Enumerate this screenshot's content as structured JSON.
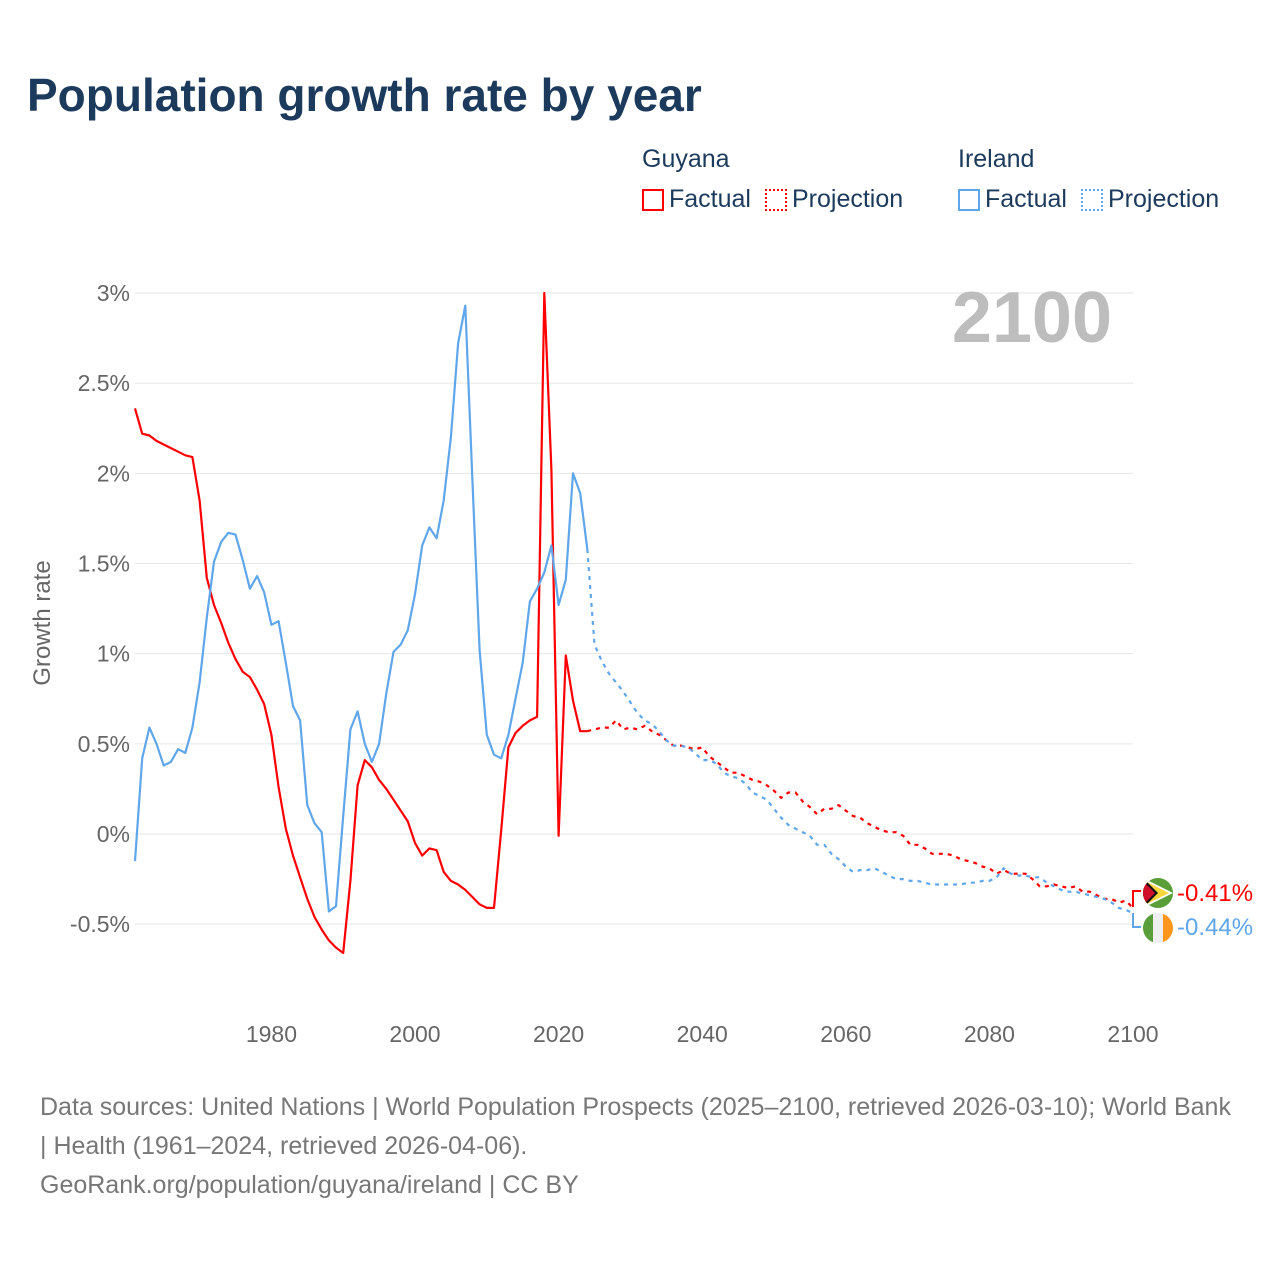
{
  "title": "Population growth rate by year",
  "legend": {
    "groups": [
      {
        "country": "Guyana",
        "factual": "Factual",
        "projection": "Projection",
        "color": "#ff0000"
      },
      {
        "country": "Ireland",
        "factual": "Factual",
        "projection": "Projection",
        "color": "#5fa6ea"
      }
    ]
  },
  "year_label": "2100",
  "end_labels": {
    "guyana": "-0.41%",
    "ireland": "-0.44%"
  },
  "footer": {
    "sources": "Data sources: United Nations | World Population Prospects (2025–2100, retrieved 2026-03-10); World Bank | Health (1961–2024, retrieved 2026-04-06).",
    "credit": "GeoRank.org/population/guyana/ireland | CC BY"
  },
  "chart_data": {
    "type": "line",
    "title": "Population growth rate by year",
    "xlabel": "",
    "ylabel": "Growth rate",
    "xlim": [
      1961,
      2100
    ],
    "ylim": [
      -0.8,
      3.0
    ],
    "x_ticks": [
      {
        "v": 1980,
        "label": "1980"
      },
      {
        "v": 2000,
        "label": "2000"
      },
      {
        "v": 2020,
        "label": "2020"
      },
      {
        "v": 2040,
        "label": "2040"
      },
      {
        "v": 2060,
        "label": "2060"
      },
      {
        "v": 2080,
        "label": "2080"
      },
      {
        "v": 2100,
        "label": "2100"
      }
    ],
    "y_ticks": [
      {
        "v": 3,
        "label": "3%"
      },
      {
        "v": 2.5,
        "label": "2.5%"
      },
      {
        "v": 2,
        "label": "2%"
      },
      {
        "v": 1.5,
        "label": "1.5%"
      },
      {
        "v": 1,
        "label": "1%"
      },
      {
        "v": 0.5,
        "label": "0.5%"
      },
      {
        "v": 0,
        "label": "0%"
      },
      {
        "v": -0.5,
        "label": "-0.5%"
      }
    ],
    "grid": true,
    "legend_position": "top-right",
    "series": [
      {
        "name": "Guyana Factual",
        "color": "#ff0000",
        "dashed": false,
        "x_start": 1961,
        "values": [
          2.36,
          2.22,
          2.21,
          2.18,
          2.16,
          2.14,
          2.12,
          2.1,
          2.09,
          1.85,
          1.42,
          1.27,
          1.17,
          1.06,
          0.97,
          0.9,
          0.87,
          0.8,
          0.72,
          0.55,
          0.26,
          0.03,
          -0.12,
          -0.24,
          -0.36,
          -0.46,
          -0.53,
          -0.59,
          -0.63,
          -0.66,
          -0.26,
          0.27,
          0.41,
          0.37,
          0.3,
          0.25,
          0.19,
          0.13,
          0.07,
          -0.05,
          -0.12,
          -0.08,
          -0.09,
          -0.21,
          -0.26,
          -0.28,
          -0.31,
          -0.35,
          -0.39,
          -0.41,
          -0.41,
          0.02,
          0.48,
          0.56,
          0.6,
          0.63,
          0.65,
          3.0,
          2.02,
          -0.01,
          0.99,
          0.74,
          0.57,
          0.57
        ]
      },
      {
        "name": "Guyana Projection",
        "color": "#ff0000",
        "dashed": true,
        "x_start": 2024,
        "values": [
          0.57,
          0.58,
          0.59,
          0.59,
          0.63,
          0.58,
          0.59,
          0.58,
          0.6,
          0.57,
          0.55,
          0.52,
          0.49,
          0.49,
          0.48,
          0.47,
          0.48,
          0.43,
          0.4,
          0.37,
          0.34,
          0.34,
          0.32,
          0.3,
          0.29,
          0.27,
          0.24,
          0.2,
          0.23,
          0.23,
          0.18,
          0.15,
          0.11,
          0.14,
          0.14,
          0.16,
          0.13,
          0.1,
          0.09,
          0.06,
          0.04,
          0.02,
          0.01,
          0.01,
          -0.01,
          -0.06,
          -0.06,
          -0.08,
          -0.11,
          -0.11,
          -0.11,
          -0.12,
          -0.14,
          -0.15,
          -0.16,
          -0.18,
          -0.19,
          -0.22,
          -0.2,
          -0.22,
          -0.22,
          -0.22,
          -0.25,
          -0.29,
          -0.29,
          -0.28,
          -0.29,
          -0.3,
          -0.29,
          -0.32,
          -0.32,
          -0.34,
          -0.36,
          -0.36,
          -0.38,
          -0.37,
          -0.41
        ]
      },
      {
        "name": "Ireland Factual",
        "color": "#5fa6ea",
        "dashed": false,
        "x_start": 1961,
        "values": [
          -0.15,
          0.42,
          0.59,
          0.5,
          0.38,
          0.4,
          0.47,
          0.45,
          0.59,
          0.84,
          1.2,
          1.51,
          1.62,
          1.67,
          1.66,
          1.52,
          1.36,
          1.43,
          1.34,
          1.16,
          1.18,
          0.95,
          0.71,
          0.63,
          0.16,
          0.06,
          0.01,
          -0.43,
          -0.4,
          0.1,
          0.58,
          0.68,
          0.5,
          0.4,
          0.5,
          0.78,
          1.01,
          1.05,
          1.13,
          1.33,
          1.6,
          1.7,
          1.64,
          1.85,
          2.2,
          2.72,
          2.93,
          1.95,
          1.02,
          0.55,
          0.44,
          0.42,
          0.55,
          0.75,
          0.95,
          1.29,
          1.36,
          1.45,
          1.6,
          1.27,
          1.41,
          2.0,
          1.89,
          1.58
        ]
      },
      {
        "name": "Ireland Projection",
        "color": "#5fa6ea",
        "dashed": true,
        "x_start": 2024,
        "values": [
          1.58,
          1.05,
          0.96,
          0.89,
          0.84,
          0.79,
          0.73,
          0.67,
          0.63,
          0.61,
          0.57,
          0.52,
          0.49,
          0.49,
          0.48,
          0.45,
          0.41,
          0.41,
          0.39,
          0.34,
          0.32,
          0.31,
          0.28,
          0.23,
          0.21,
          0.19,
          0.14,
          0.09,
          0.05,
          0.03,
          0.01,
          -0.01,
          -0.06,
          -0.06,
          -0.11,
          -0.14,
          -0.18,
          -0.21,
          -0.2,
          -0.2,
          -0.19,
          -0.21,
          -0.23,
          -0.25,
          -0.25,
          -0.26,
          -0.26,
          -0.27,
          -0.28,
          -0.28,
          -0.28,
          -0.28,
          -0.28,
          -0.27,
          -0.27,
          -0.26,
          -0.26,
          -0.24,
          -0.19,
          -0.22,
          -0.23,
          -0.23,
          -0.24,
          -0.24,
          -0.27,
          -0.29,
          -0.31,
          -0.32,
          -0.32,
          -0.33,
          -0.34,
          -0.35,
          -0.36,
          -0.38,
          -0.41,
          -0.42,
          -0.44
        ]
      }
    ]
  }
}
